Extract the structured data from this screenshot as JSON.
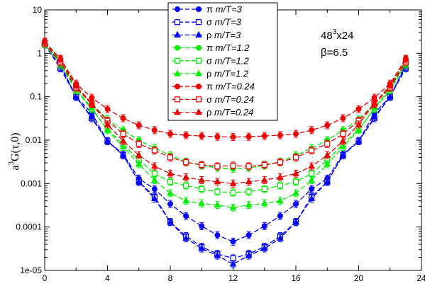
{
  "chart_data": {
    "type": "line",
    "ylabel": "a³G(τ,0)",
    "xlim": [
      0,
      24
    ],
    "ylim": [
      1e-05,
      10
    ],
    "yscale": "log",
    "x_ticks": [
      0,
      4,
      8,
      12,
      16,
      20,
      24
    ],
    "x_tick_labels": [
      "0",
      "4",
      "8",
      "12",
      "16",
      "20",
      "24"
    ],
    "y_ticks": [
      1e-05,
      0.0001,
      0.001,
      0.01,
      0.1,
      1,
      10
    ],
    "y_tick_labels": [
      "1e-05",
      "0.0001",
      "0.001",
      "0.01",
      "0.1",
      "1",
      "10"
    ],
    "legend_placement": "top-center",
    "annotation": {
      "lattice_base": "48",
      "lattice_exp": "3",
      "lattice_rest": "x24",
      "beta": "β=6.5"
    },
    "x": [
      0,
      1,
      2,
      3,
      4,
      5,
      6,
      7,
      8,
      9,
      10,
      11,
      12,
      13,
      14,
      15,
      16,
      17,
      18,
      19,
      20,
      21,
      22,
      23
    ],
    "series": [
      {
        "name": "π m/T=3",
        "greek": "π",
        "mT": "m/T=3",
        "color": "#0000ff",
        "marker": "circle-filled",
        "values": [
          1.8,
          0.55,
          0.1,
          0.042,
          0.0095,
          0.0048,
          0.0013,
          0.00075,
          0.00034,
          0.00018,
          0.000105,
          6.5e-05,
          4.6e-05,
          6.5e-05,
          0.000105,
          0.00018,
          0.00034,
          0.00075,
          0.0013,
          0.0048,
          0.0095,
          0.042,
          0.1,
          0.55
        ]
      },
      {
        "name": "σ m/T=3",
        "greek": "σ",
        "mT": "m/T=3",
        "color": "#0000ff",
        "marker": "square-open",
        "values": [
          1.6,
          0.45,
          0.1,
          0.032,
          0.0095,
          0.0045,
          0.0011,
          0.0005,
          0.00013,
          6.2e-05,
          3.5e-05,
          2.4e-05,
          1.9e-05,
          2.4e-05,
          3.5e-05,
          6.2e-05,
          0.00013,
          0.0005,
          0.0011,
          0.0045,
          0.0095,
          0.032,
          0.1,
          0.45
        ]
      },
      {
        "name": "ρ m/T=3",
        "greek": "ρ",
        "mT": "m/T=3",
        "color": "#0000ff",
        "marker": "triangle-filled",
        "values": [
          1.7,
          0.5,
          0.1,
          0.034,
          0.0095,
          0.0045,
          0.0011,
          0.00045,
          0.00013,
          5.5e-05,
          3.2e-05,
          2.2e-05,
          1.4e-05,
          2.2e-05,
          3.2e-05,
          5.5e-05,
          0.00013,
          0.00045,
          0.0011,
          0.0045,
          0.0095,
          0.034,
          0.1,
          0.5
        ]
      },
      {
        "name": "π m/T=1.2",
        "greek": "π",
        "mT": "m/T=1.2",
        "color": "#00ee00",
        "marker": "circle-filled",
        "values": [
          1.8,
          0.65,
          0.17,
          0.07,
          0.03,
          0.017,
          0.01,
          0.0065,
          0.0045,
          0.0032,
          0.0026,
          0.0023,
          0.0022,
          0.0023,
          0.0026,
          0.0032,
          0.0045,
          0.0065,
          0.01,
          0.017,
          0.03,
          0.07,
          0.17,
          0.65
        ]
      },
      {
        "name": "σ m/T=1.2",
        "greek": "σ",
        "mT": "m/T=1.2",
        "color": "#00ee00",
        "marker": "square-open",
        "values": [
          1.6,
          0.55,
          0.14,
          0.052,
          0.018,
          0.008,
          0.0035,
          0.0017,
          0.0011,
          0.0009,
          0.00075,
          0.00065,
          0.00062,
          0.00065,
          0.00075,
          0.0009,
          0.0011,
          0.0017,
          0.0035,
          0.008,
          0.018,
          0.052,
          0.14,
          0.55
        ]
      },
      {
        "name": "ρ m/T=1.2",
        "greek": "ρ",
        "mT": "m/T=1.2",
        "color": "#00ee00",
        "marker": "triangle-filled",
        "values": [
          1.7,
          0.6,
          0.15,
          0.055,
          0.017,
          0.007,
          0.0028,
          0.0012,
          0.0006,
          0.0004,
          0.00035,
          0.00032,
          0.00028,
          0.00032,
          0.00035,
          0.0004,
          0.0006,
          0.0012,
          0.0028,
          0.007,
          0.017,
          0.055,
          0.15,
          0.6
        ]
      },
      {
        "name": "π m/T=0.24",
        "greek": "π",
        "mT": "m/T=0.24",
        "color": "#ee0000",
        "marker": "circle-filled",
        "values": [
          1.85,
          0.75,
          0.2,
          0.095,
          0.052,
          0.032,
          0.022,
          0.017,
          0.014,
          0.013,
          0.0125,
          0.012,
          0.0118,
          0.012,
          0.0125,
          0.013,
          0.014,
          0.017,
          0.022,
          0.032,
          0.052,
          0.095,
          0.2,
          0.75
        ]
      },
      {
        "name": "σ m/T=0.24",
        "greek": "σ",
        "mT": "m/T=0.24",
        "color": "#ee0000",
        "marker": "square-open",
        "values": [
          1.7,
          0.62,
          0.16,
          0.068,
          0.028,
          0.014,
          0.0082,
          0.0058,
          0.004,
          0.0031,
          0.0027,
          0.0025,
          0.0026,
          0.0025,
          0.0027,
          0.0031,
          0.004,
          0.0058,
          0.0082,
          0.014,
          0.028,
          0.068,
          0.16,
          0.62
        ]
      },
      {
        "name": "ρ m/T=0.24",
        "greek": "ρ",
        "mT": "m/T=0.24",
        "color": "#ee0000",
        "marker": "triangle-filled",
        "values": [
          1.8,
          0.72,
          0.18,
          0.07,
          0.023,
          0.0095,
          0.0045,
          0.0025,
          0.0017,
          0.0014,
          0.0012,
          0.0011,
          0.001,
          0.0011,
          0.0012,
          0.0014,
          0.0017,
          0.0025,
          0.0045,
          0.0095,
          0.023,
          0.07,
          0.18,
          0.72
        ]
      }
    ]
  }
}
